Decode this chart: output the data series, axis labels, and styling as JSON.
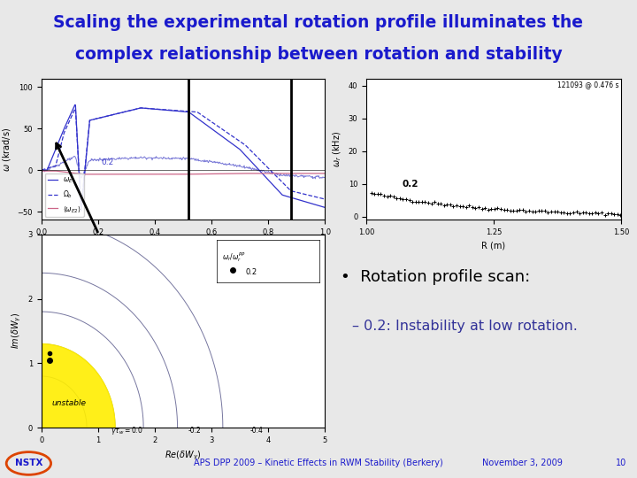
{
  "title_line1": "Scaling the experimental rotation profile illuminates the",
  "title_line2": "complex relationship between rotation and stability",
  "title_color": "#1a1acc",
  "title_bg": "#c8c8d0",
  "slide_bg": "#e8e8e8",
  "footer_text": "APS DPP 2009 – Kinetic Effects in RWM Stability (Berkery)",
  "footer_date": "November 3, 2009",
  "footer_page": "10",
  "footer_logo": "NSTX",
  "bullet_text": "Rotation profile scan:",
  "bullet_sub": "– 0.2: Instability at low rotation.",
  "annotation_02": "0.2",
  "top_separator_color": "#cc2222",
  "footer_separator_color": "#cc2222"
}
